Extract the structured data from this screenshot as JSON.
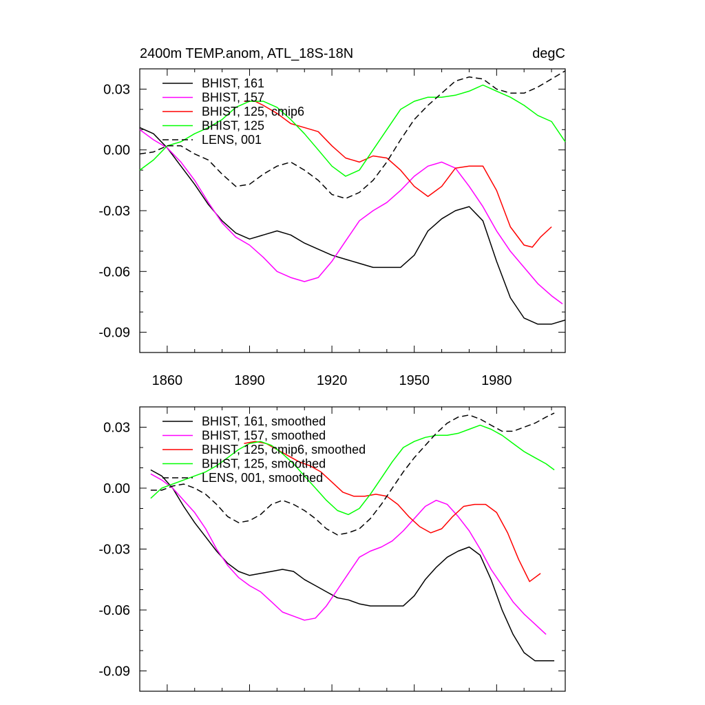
{
  "chart_data": [
    {
      "type": "line",
      "title": "2400m TEMP.anom, ATL_18S-18N",
      "units": "degC",
      "xlabel": "",
      "ylabel": "",
      "xlim": [
        1850,
        2005
      ],
      "ylim": [
        -0.1,
        0.04
      ],
      "xticks": [
        "1860",
        "1890",
        "1920",
        "1950",
        "1980"
      ],
      "yticks": [
        "0.03",
        "0.00",
        "-0.03",
        "-0.06",
        "-0.09"
      ],
      "legend_position": "top-left",
      "series": [
        {
          "name": "BHIST, 161",
          "color": "#000000",
          "dash": "solid",
          "x": [
            1850,
            1855,
            1860,
            1865,
            1870,
            1875,
            1880,
            1885,
            1890,
            1895,
            1900,
            1905,
            1910,
            1915,
            1920,
            1925,
            1930,
            1935,
            1940,
            1945,
            1950,
            1955,
            1960,
            1965,
            1970,
            1975,
            1980,
            1985,
            1990,
            1995,
            2000,
            2005
          ],
          "y": [
            0.011,
            0.008,
            0.001,
            -0.008,
            -0.017,
            -0.027,
            -0.035,
            -0.041,
            -0.044,
            -0.042,
            -0.04,
            -0.042,
            -0.046,
            -0.049,
            -0.052,
            -0.054,
            -0.056,
            -0.058,
            -0.058,
            -0.058,
            -0.052,
            -0.04,
            -0.034,
            -0.03,
            -0.028,
            -0.035,
            -0.055,
            -0.073,
            -0.083,
            -0.086,
            -0.086,
            -0.084
          ]
        },
        {
          "name": "BHIST, 157",
          "color": "#ff00ff",
          "dash": "solid",
          "x": [
            1850,
            1855,
            1860,
            1865,
            1870,
            1875,
            1880,
            1885,
            1890,
            1895,
            1900,
            1905,
            1910,
            1915,
            1920,
            1925,
            1930,
            1935,
            1940,
            1945,
            1950,
            1955,
            1960,
            1965,
            1970,
            1975,
            1980,
            1985,
            1990,
            1995,
            2000,
            2004
          ],
          "y": [
            0.01,
            0.005,
            0.001,
            -0.006,
            -0.015,
            -0.026,
            -0.036,
            -0.043,
            -0.047,
            -0.053,
            -0.06,
            -0.063,
            -0.065,
            -0.063,
            -0.055,
            -0.045,
            -0.035,
            -0.03,
            -0.026,
            -0.02,
            -0.013,
            -0.008,
            -0.006,
            -0.009,
            -0.018,
            -0.028,
            -0.04,
            -0.05,
            -0.058,
            -0.066,
            -0.072,
            -0.076
          ]
        },
        {
          "name": "BHIST, 125, cmip6",
          "color": "#ff0000",
          "dash": "solid",
          "x": [
            1888,
            1892,
            1895,
            1900,
            1905,
            1910,
            1915,
            1920,
            1925,
            1930,
            1935,
            1940,
            1945,
            1950,
            1955,
            1960,
            1965,
            1970,
            1975,
            1980,
            1985,
            1990,
            1993,
            1996,
            2000
          ],
          "y": [
            0.024,
            0.024,
            0.022,
            0.018,
            0.013,
            0.011,
            0.009,
            0.002,
            -0.004,
            -0.006,
            -0.003,
            -0.004,
            -0.01,
            -0.018,
            -0.023,
            -0.018,
            -0.009,
            -0.008,
            -0.008,
            -0.02,
            -0.038,
            -0.047,
            -0.048,
            -0.043,
            -0.038
          ]
        },
        {
          "name": "BHIST, 125",
          "color": "#00ff00",
          "dash": "solid",
          "x": [
            1850,
            1855,
            1860,
            1865,
            1870,
            1875,
            1880,
            1885,
            1890,
            1895,
            1900,
            1905,
            1910,
            1915,
            1920,
            1925,
            1930,
            1935,
            1940,
            1945,
            1950,
            1955,
            1960,
            1965,
            1970,
            1975,
            1980,
            1985,
            1990,
            1995,
            2000,
            2005
          ],
          "y": [
            -0.01,
            -0.005,
            0.002,
            0.004,
            0.008,
            0.011,
            0.015,
            0.021,
            0.024,
            0.024,
            0.021,
            0.015,
            0.008,
            0.0,
            -0.008,
            -0.013,
            -0.01,
            0.0,
            0.01,
            0.02,
            0.024,
            0.026,
            0.026,
            0.027,
            0.029,
            0.032,
            0.029,
            0.026,
            0.022,
            0.017,
            0.014,
            0.004
          ]
        },
        {
          "name": "LENS, 001",
          "color": "#000000",
          "dash": "dashed",
          "x": [
            1850,
            1855,
            1860,
            1865,
            1870,
            1875,
            1880,
            1885,
            1890,
            1895,
            1900,
            1905,
            1910,
            1915,
            1920,
            1925,
            1930,
            1935,
            1940,
            1945,
            1950,
            1955,
            1960,
            1965,
            1970,
            1975,
            1980,
            1985,
            1990,
            1995,
            2000,
            2005
          ],
          "y": [
            -0.002,
            -0.001,
            0.002,
            0.002,
            -0.002,
            -0.005,
            -0.012,
            -0.018,
            -0.017,
            -0.012,
            -0.008,
            -0.006,
            -0.01,
            -0.015,
            -0.022,
            -0.024,
            -0.021,
            -0.015,
            -0.006,
            0.005,
            0.015,
            0.022,
            0.028,
            0.034,
            0.036,
            0.035,
            0.03,
            0.028,
            0.028,
            0.031,
            0.035,
            0.039
          ]
        }
      ]
    },
    {
      "type": "line",
      "title": "",
      "xlabel": "",
      "ylabel": "",
      "xlim": [
        1850,
        2005
      ],
      "ylim": [
        -0.1,
        0.04
      ],
      "yticks": [
        "0.03",
        "0.00",
        "-0.03",
        "-0.06",
        "-0.09"
      ],
      "legend_position": "top-left",
      "series": [
        {
          "name": "BHIST, 161, smoothed",
          "color": "#000000",
          "dash": "solid",
          "x": [
            1854,
            1858,
            1862,
            1866,
            1870,
            1874,
            1878,
            1882,
            1886,
            1890,
            1894,
            1898,
            1902,
            1906,
            1910,
            1914,
            1918,
            1922,
            1926,
            1930,
            1934,
            1938,
            1942,
            1946,
            1950,
            1954,
            1958,
            1962,
            1966,
            1970,
            1974,
            1978,
            1982,
            1986,
            1990,
            1994,
            1998,
            2001
          ],
          "y": [
            0.009,
            0.006,
            0.0,
            -0.009,
            -0.017,
            -0.024,
            -0.031,
            -0.037,
            -0.041,
            -0.043,
            -0.042,
            -0.041,
            -0.04,
            -0.041,
            -0.045,
            -0.048,
            -0.051,
            -0.054,
            -0.055,
            -0.057,
            -0.058,
            -0.058,
            -0.058,
            -0.058,
            -0.053,
            -0.045,
            -0.039,
            -0.034,
            -0.031,
            -0.029,
            -0.033,
            -0.045,
            -0.06,
            -0.072,
            -0.081,
            -0.085,
            -0.085,
            -0.085
          ]
        },
        {
          "name": "BHIST, 157, smoothed",
          "color": "#ff00ff",
          "dash": "solid",
          "x": [
            1854,
            1858,
            1862,
            1866,
            1870,
            1874,
            1878,
            1882,
            1886,
            1890,
            1894,
            1898,
            1902,
            1906,
            1910,
            1914,
            1918,
            1922,
            1926,
            1930,
            1934,
            1938,
            1942,
            1946,
            1950,
            1954,
            1958,
            1962,
            1966,
            1970,
            1974,
            1978,
            1982,
            1986,
            1990,
            1994,
            1998
          ],
          "y": [
            0.007,
            0.004,
            0.0,
            -0.006,
            -0.012,
            -0.02,
            -0.03,
            -0.038,
            -0.044,
            -0.048,
            -0.051,
            -0.056,
            -0.061,
            -0.063,
            -0.065,
            -0.064,
            -0.058,
            -0.05,
            -0.042,
            -0.034,
            -0.031,
            -0.029,
            -0.026,
            -0.021,
            -0.015,
            -0.009,
            -0.006,
            -0.008,
            -0.014,
            -0.021,
            -0.03,
            -0.04,
            -0.048,
            -0.056,
            -0.062,
            -0.067,
            -0.072
          ]
        },
        {
          "name": "BHIST, 125, cmip6, smoothed",
          "color": "#ff0000",
          "dash": "solid",
          "x": [
            1888,
            1892,
            1896,
            1900,
            1904,
            1908,
            1912,
            1916,
            1920,
            1924,
            1928,
            1932,
            1936,
            1940,
            1944,
            1948,
            1952,
            1956,
            1960,
            1964,
            1968,
            1972,
            1976,
            1980,
            1984,
            1988,
            1992,
            1996
          ],
          "y": [
            0.022,
            0.023,
            0.022,
            0.019,
            0.016,
            0.013,
            0.011,
            0.008,
            0.003,
            -0.002,
            -0.004,
            -0.004,
            -0.003,
            -0.004,
            -0.008,
            -0.014,
            -0.019,
            -0.022,
            -0.02,
            -0.014,
            -0.009,
            -0.008,
            -0.008,
            -0.012,
            -0.022,
            -0.035,
            -0.046,
            -0.042
          ]
        },
        {
          "name": "BHIST, 125, smoothed",
          "color": "#00ff00",
          "dash": "solid",
          "x": [
            1854,
            1858,
            1862,
            1866,
            1870,
            1874,
            1878,
            1882,
            1886,
            1890,
            1894,
            1898,
            1902,
            1906,
            1910,
            1914,
            1918,
            1922,
            1926,
            1930,
            1934,
            1938,
            1942,
            1946,
            1950,
            1954,
            1958,
            1962,
            1966,
            1970,
            1974,
            1978,
            1982,
            1986,
            1990,
            1994,
            1998,
            2001
          ],
          "y": [
            -0.005,
            0.0,
            0.002,
            0.004,
            0.006,
            0.008,
            0.011,
            0.015,
            0.019,
            0.022,
            0.023,
            0.021,
            0.017,
            0.012,
            0.006,
            0.0,
            -0.006,
            -0.011,
            -0.013,
            -0.01,
            -0.003,
            0.005,
            0.013,
            0.02,
            0.023,
            0.025,
            0.026,
            0.026,
            0.027,
            0.029,
            0.031,
            0.029,
            0.026,
            0.022,
            0.018,
            0.015,
            0.012,
            0.009
          ]
        },
        {
          "name": "LENS, 001, smoothed",
          "color": "#000000",
          "dash": "dashed",
          "x": [
            1854,
            1858,
            1862,
            1866,
            1870,
            1874,
            1878,
            1882,
            1886,
            1890,
            1894,
            1898,
            1902,
            1906,
            1910,
            1914,
            1918,
            1922,
            1926,
            1930,
            1934,
            1938,
            1942,
            1946,
            1950,
            1954,
            1958,
            1962,
            1966,
            1970,
            1974,
            1978,
            1982,
            1986,
            1990,
            1994,
            1998,
            2001
          ],
          "y": [
            -0.001,
            -0.001,
            0.001,
            0.002,
            0.0,
            -0.003,
            -0.008,
            -0.014,
            -0.017,
            -0.016,
            -0.013,
            -0.008,
            -0.006,
            -0.008,
            -0.011,
            -0.015,
            -0.02,
            -0.023,
            -0.022,
            -0.02,
            -0.015,
            -0.008,
            0.0,
            0.008,
            0.015,
            0.021,
            0.027,
            0.032,
            0.035,
            0.036,
            0.034,
            0.031,
            0.028,
            0.028,
            0.03,
            0.032,
            0.035,
            0.037
          ]
        }
      ]
    }
  ]
}
